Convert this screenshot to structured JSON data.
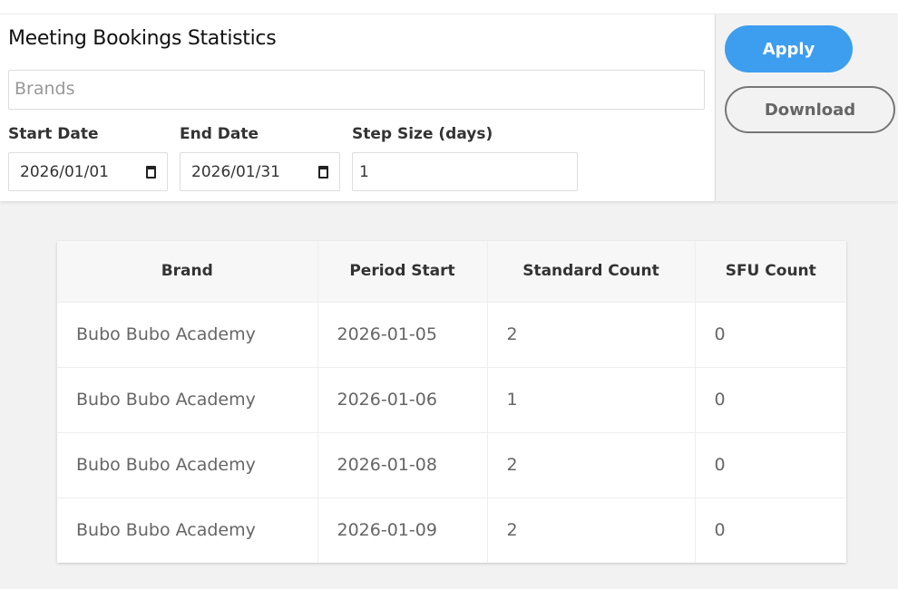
{
  "title": "Meeting Bookings Statistics",
  "brands_placeholder": "Brands",
  "filters": {
    "start_label": "Start Date",
    "start_value": "2026/01/01",
    "end_label": "End Date",
    "end_value": "2026/01/31",
    "step_label": "Step Size (days)",
    "step_value": "1"
  },
  "buttons": {
    "apply": "Apply",
    "download": "Download"
  },
  "colors": {
    "accent": "#3d9eef"
  },
  "table": {
    "headers": [
      "Brand",
      "Period Start",
      "Standard Count",
      "SFU Count"
    ],
    "rows": [
      [
        "Bubo Bubo Academy",
        "2026-01-05",
        "2",
        "0"
      ],
      [
        "Bubo Bubo Academy",
        "2026-01-06",
        "1",
        "0"
      ],
      [
        "Bubo Bubo Academy",
        "2026-01-08",
        "2",
        "0"
      ],
      [
        "Bubo Bubo Academy",
        "2026-01-09",
        "2",
        "0"
      ]
    ]
  }
}
